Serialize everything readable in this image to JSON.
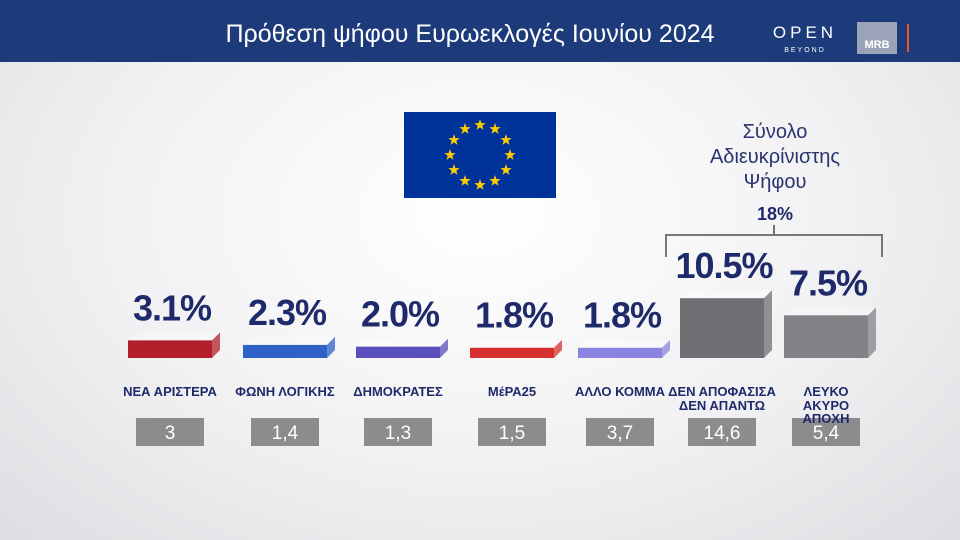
{
  "header": {
    "title": "Πρόθεση ψήφου Ευρωεκλογές Ιουνίου 2024",
    "logo": "OPEN",
    "logo_sub": "BEYOND",
    "partner": "MRB"
  },
  "chart_data": {
    "type": "bar",
    "categories": [
      "ΝΕΑ ΑΡΙΣΤΕΡΑ",
      "ΦΩΝΗ ΛΟΓΙΚΗΣ",
      "ΔΗΜΟΚΡΑΤΕΣ",
      "ΜέΡΑ25",
      "ΑΛΛΟ ΚΟΜΜΑ",
      "ΔΕΝ ΑΠΟΦΑΣΙΣΑ\nΔΕΝ ΑΠΑΝΤΩ",
      "ΛΕΥΚΟ\nΑΚΥΡΟ\nΑΠΟΧΗ"
    ],
    "values": [
      3.1,
      2.3,
      2.0,
      1.8,
      1.8,
      10.5,
      7.5
    ],
    "value_labels": [
      "3.1%",
      "2.3%",
      "2.0%",
      "1.8%",
      "1.8%",
      "10.5%",
      "7.5%"
    ],
    "colors": [
      "#b3202b",
      "#2d62c8",
      "#5a50bb",
      "#d5302e",
      "#8a84e0",
      "#6f6f73",
      "#838387"
    ],
    "previous": [
      {
        "value": 3,
        "label": "3"
      },
      {
        "value": 1.4,
        "label": "1,4"
      },
      {
        "value": 1.3,
        "label": "1,3"
      },
      {
        "value": 1.5,
        "label": "1,5"
      },
      {
        "value": 3.7,
        "label": "3,7"
      },
      {
        "value": 14.6,
        "label": "14,6"
      },
      {
        "value": 5.4,
        "label": "5,4"
      }
    ],
    "group_label": "Σύνολο\nΑδιευκρίνιστης\nΨήφου",
    "group_value": 18,
    "group_value_label": "18%"
  }
}
